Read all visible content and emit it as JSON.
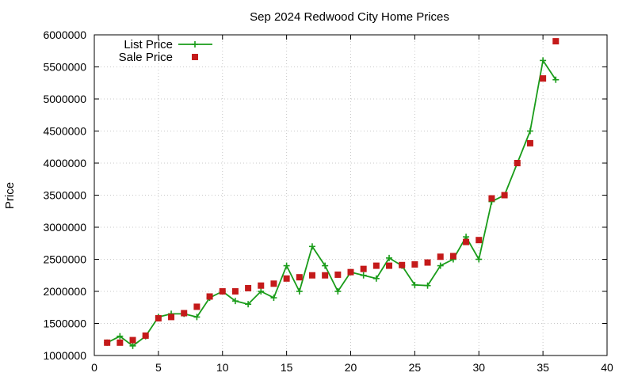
{
  "chart_data": {
    "type": "line",
    "title": "Sep 2024 Redwood City Home Prices",
    "xlabel": "",
    "ylabel": "Price",
    "xlim": [
      0,
      40
    ],
    "ylim": [
      1000000,
      6000000
    ],
    "xticks": [
      0,
      5,
      10,
      15,
      20,
      25,
      30,
      35,
      40
    ],
    "yticks": [
      1000000,
      1500000,
      2000000,
      2500000,
      3000000,
      3500000,
      4000000,
      4500000,
      5000000,
      5500000,
      6000000
    ],
    "grid": true,
    "legend_position": "top-left",
    "series": [
      {
        "name": "List Price",
        "style": "line-with-cross-markers",
        "color": "#1a9c1a",
        "x": [
          1,
          2,
          3,
          4,
          5,
          6,
          7,
          8,
          9,
          10,
          11,
          12,
          13,
          14,
          15,
          16,
          17,
          18,
          19,
          20,
          21,
          22,
          23,
          24,
          25,
          26,
          27,
          28,
          29,
          30,
          31,
          32,
          33,
          34,
          35,
          36
        ],
        "values": [
          1200000,
          1300000,
          1150000,
          1300000,
          1600000,
          1650000,
          1650000,
          1600000,
          1900000,
          2000000,
          1850000,
          1800000,
          2000000,
          1900000,
          2400000,
          2000000,
          2700000,
          2400000,
          2000000,
          2300000,
          2250000,
          2200000,
          2520000,
          2400000,
          2100000,
          2090000,
          2400000,
          2500000,
          2850000,
          2500000,
          3400000,
          3500000,
          4000000,
          4500000,
          5600000,
          5300000
        ]
      },
      {
        "name": "Sale Price",
        "style": "square-markers",
        "color": "#c41a1a",
        "x": [
          1,
          2,
          3,
          4,
          5,
          6,
          7,
          8,
          9,
          10,
          11,
          12,
          13,
          14,
          15,
          16,
          17,
          18,
          19,
          20,
          21,
          22,
          23,
          24,
          25,
          26,
          27,
          28,
          29,
          30,
          31,
          32,
          33,
          34,
          35,
          36
        ],
        "values": [
          1200000,
          1200000,
          1240000,
          1310000,
          1580000,
          1600000,
          1660000,
          1760000,
          1920000,
          2000000,
          2000000,
          2050000,
          2090000,
          2120000,
          2200000,
          2220000,
          2250000,
          2250000,
          2260000,
          2300000,
          2350000,
          2400000,
          2400000,
          2410000,
          2420000,
          2450000,
          2540000,
          2550000,
          2770000,
          2800000,
          3450000,
          3500000,
          4000000,
          4310000,
          5320000,
          5900000
        ]
      }
    ]
  }
}
